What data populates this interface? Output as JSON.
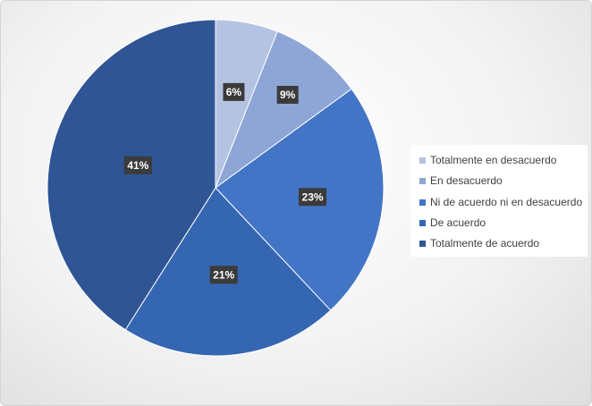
{
  "chart_data": {
    "type": "pie",
    "categories": [
      "Totalmente en desacuerdo",
      "En desacuerdo",
      "Ni de acuerdo ni en desacuerdo",
      "De acuerdo",
      "Totalmente de acuerdo"
    ],
    "values": [
      6,
      9,
      23,
      21,
      41
    ],
    "labels": [
      "6%",
      "9%",
      "23%",
      "21%",
      "41%"
    ],
    "colors": [
      "#b4c3e2",
      "#8ea6d6",
      "#4375c6",
      "#3566b1",
      "#2f5595"
    ],
    "legend_placement": "right",
    "start_angle_deg": 0,
    "direction": "clockwise"
  }
}
